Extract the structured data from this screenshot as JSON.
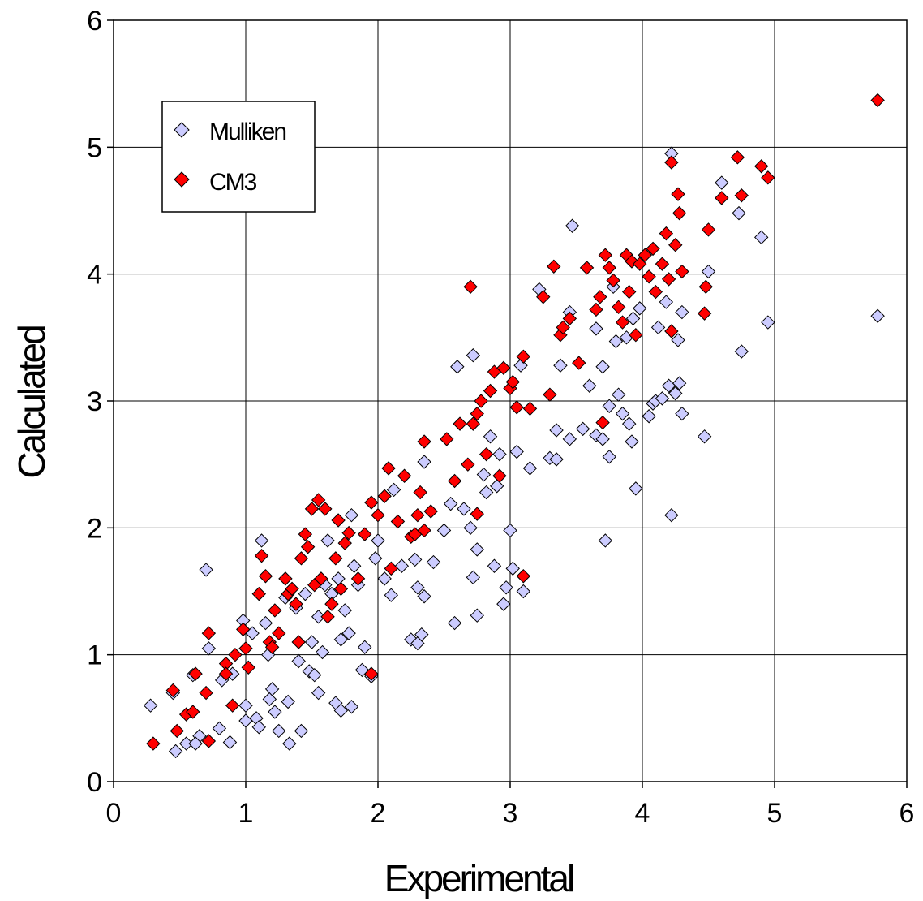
{
  "chart_data": {
    "type": "scatter",
    "title": "",
    "xlabel": "Experimental",
    "ylabel": "Calculated",
    "xlim": [
      0,
      6
    ],
    "ylim": [
      0,
      6
    ],
    "x_ticks": [
      "0",
      "1",
      "2",
      "3",
      "4",
      "5",
      "6"
    ],
    "y_ticks": [
      "0",
      "1",
      "2",
      "3",
      "4",
      "5",
      "6"
    ],
    "grid": true,
    "legend_position": "top-left",
    "series": [
      {
        "name": "Mulliken",
        "color": "#ccccff",
        "marker": "diamond",
        "points": [
          [
            0.28,
            0.6
          ],
          [
            0.45,
            0.7
          ],
          [
            0.47,
            0.24
          ],
          [
            0.55,
            0.3
          ],
          [
            0.6,
            0.84
          ],
          [
            0.65,
            0.36
          ],
          [
            0.7,
            1.67
          ],
          [
            0.72,
            1.05
          ],
          [
            0.8,
            0.42
          ],
          [
            0.82,
            0.8
          ],
          [
            0.88,
            0.31
          ],
          [
            0.9,
            0.85
          ],
          [
            0.98,
            1.27
          ],
          [
            1.0,
            0.48
          ],
          [
            1.0,
            0.6
          ],
          [
            1.05,
            1.17
          ],
          [
            1.08,
            0.5
          ],
          [
            1.1,
            0.43
          ],
          [
            1.12,
            1.9
          ],
          [
            1.15,
            1.25
          ],
          [
            1.17,
            1.0
          ],
          [
            1.18,
            0.65
          ],
          [
            1.2,
            0.73
          ],
          [
            1.22,
            0.55
          ],
          [
            1.25,
            0.4
          ],
          [
            1.3,
            1.45
          ],
          [
            1.32,
            0.63
          ],
          [
            1.33,
            0.3
          ],
          [
            1.38,
            1.37
          ],
          [
            1.4,
            0.95
          ],
          [
            1.42,
            0.4
          ],
          [
            1.45,
            1.48
          ],
          [
            1.48,
            0.87
          ],
          [
            1.5,
            1.1
          ],
          [
            1.52,
            0.84
          ],
          [
            1.55,
            1.3
          ],
          [
            1.55,
            0.7
          ],
          [
            1.58,
            1.02
          ],
          [
            1.6,
            1.55
          ],
          [
            1.62,
            1.9
          ],
          [
            1.65,
            1.48
          ],
          [
            1.68,
            0.62
          ],
          [
            1.7,
            1.6
          ],
          [
            1.72,
            0.56
          ],
          [
            1.75,
            1.35
          ],
          [
            1.78,
            1.17
          ],
          [
            1.8,
            2.1
          ],
          [
            1.8,
            0.59
          ],
          [
            1.82,
            1.7
          ],
          [
            1.85,
            1.55
          ],
          [
            1.88,
            0.88
          ],
          [
            1.9,
            1.06
          ],
          [
            1.95,
            0.83
          ],
          [
            1.98,
            1.76
          ],
          [
            2.0,
            1.9
          ],
          [
            2.05,
            1.6
          ],
          [
            2.1,
            1.47
          ],
          [
            2.12,
            2.3
          ],
          [
            2.18,
            1.7
          ],
          [
            2.25,
            1.12
          ],
          [
            2.28,
            1.75
          ],
          [
            2.3,
            1.53
          ],
          [
            2.3,
            1.09
          ],
          [
            2.33,
            1.16
          ],
          [
            2.35,
            1.46
          ],
          [
            2.35,
            2.52
          ],
          [
            2.42,
            1.73
          ],
          [
            2.5,
            1.98
          ],
          [
            2.55,
            2.19
          ],
          [
            2.58,
            1.25
          ],
          [
            2.6,
            3.27
          ],
          [
            2.65,
            2.15
          ],
          [
            2.7,
            2.0
          ],
          [
            2.72,
            1.61
          ],
          [
            2.72,
            3.36
          ],
          [
            2.75,
            1.31
          ],
          [
            2.75,
            1.83
          ],
          [
            2.8,
            2.42
          ],
          [
            2.82,
            2.28
          ],
          [
            2.85,
            2.72
          ],
          [
            2.88,
            1.7
          ],
          [
            2.9,
            2.33
          ],
          [
            2.92,
            2.58
          ],
          [
            2.95,
            1.4
          ],
          [
            2.97,
            1.53
          ],
          [
            3.0,
            1.98
          ],
          [
            3.02,
            1.68
          ],
          [
            3.05,
            2.6
          ],
          [
            3.08,
            3.28
          ],
          [
            3.1,
            1.5
          ],
          [
            3.15,
            2.47
          ],
          [
            3.22,
            3.88
          ],
          [
            3.3,
            2.55
          ],
          [
            3.35,
            2.77
          ],
          [
            3.35,
            2.54
          ],
          [
            3.38,
            3.28
          ],
          [
            3.45,
            2.7
          ],
          [
            3.45,
            3.7
          ],
          [
            3.47,
            4.38
          ],
          [
            3.55,
            2.78
          ],
          [
            3.6,
            3.12
          ],
          [
            3.65,
            2.73
          ],
          [
            3.65,
            3.57
          ],
          [
            3.7,
            3.27
          ],
          [
            3.7,
            2.7
          ],
          [
            3.72,
            1.9
          ],
          [
            3.75,
            2.56
          ],
          [
            3.75,
            2.96
          ],
          [
            3.78,
            3.9
          ],
          [
            3.8,
            3.47
          ],
          [
            3.82,
            3.05
          ],
          [
            3.85,
            2.9
          ],
          [
            3.88,
            3.5
          ],
          [
            3.9,
            2.82
          ],
          [
            3.92,
            2.68
          ],
          [
            3.93,
            3.65
          ],
          [
            3.95,
            2.31
          ],
          [
            3.98,
            3.73
          ],
          [
            4.05,
            2.88
          ],
          [
            4.08,
            2.98
          ],
          [
            4.1,
            3.0
          ],
          [
            4.12,
            3.58
          ],
          [
            4.15,
            3.02
          ],
          [
            4.18,
            3.78
          ],
          [
            4.2,
            3.12
          ],
          [
            4.22,
            2.1
          ],
          [
            4.22,
            4.95
          ],
          [
            4.25,
            3.06
          ],
          [
            4.27,
            3.48
          ],
          [
            4.28,
            3.14
          ],
          [
            4.3,
            2.9
          ],
          [
            4.3,
            3.7
          ],
          [
            4.47,
            2.72
          ],
          [
            4.5,
            4.02
          ],
          [
            4.6,
            4.72
          ],
          [
            4.73,
            4.48
          ],
          [
            4.75,
            3.39
          ],
          [
            4.9,
            4.29
          ],
          [
            4.95,
            3.62
          ],
          [
            5.78,
            3.67
          ],
          [
            0.62,
            0.3
          ],
          [
            1.72,
            1.12
          ]
        ]
      },
      {
        "name": "CM3",
        "color": "#ff0000",
        "marker": "diamond",
        "points": [
          [
            0.3,
            0.3
          ],
          [
            0.45,
            0.72
          ],
          [
            0.48,
            0.4
          ],
          [
            0.55,
            0.53
          ],
          [
            0.6,
            0.55
          ],
          [
            0.62,
            0.85
          ],
          [
            0.7,
            0.7
          ],
          [
            0.72,
            1.17
          ],
          [
            0.72,
            0.32
          ],
          [
            0.85,
            0.93
          ],
          [
            0.85,
            0.85
          ],
          [
            0.9,
            0.6
          ],
          [
            0.92,
            1.0
          ],
          [
            0.98,
            1.2
          ],
          [
            1.0,
            1.05
          ],
          [
            1.02,
            0.9
          ],
          [
            1.1,
            1.48
          ],
          [
            1.12,
            1.78
          ],
          [
            1.15,
            1.62
          ],
          [
            1.18,
            1.1
          ],
          [
            1.2,
            1.06
          ],
          [
            1.22,
            1.35
          ],
          [
            1.25,
            1.17
          ],
          [
            1.3,
            1.6
          ],
          [
            1.32,
            1.48
          ],
          [
            1.35,
            1.52
          ],
          [
            1.38,
            1.4
          ],
          [
            1.4,
            1.1
          ],
          [
            1.42,
            1.76
          ],
          [
            1.45,
            1.95
          ],
          [
            1.47,
            1.85
          ],
          [
            1.5,
            2.15
          ],
          [
            1.52,
            1.55
          ],
          [
            1.55,
            2.22
          ],
          [
            1.57,
            1.6
          ],
          [
            1.6,
            2.15
          ],
          [
            1.62,
            1.3
          ],
          [
            1.65,
            1.4
          ],
          [
            1.68,
            1.76
          ],
          [
            1.7,
            2.06
          ],
          [
            1.72,
            1.52
          ],
          [
            1.75,
            1.88
          ],
          [
            1.78,
            1.96
          ],
          [
            1.85,
            1.6
          ],
          [
            1.9,
            1.95
          ],
          [
            1.95,
            2.2
          ],
          [
            1.95,
            0.85
          ],
          [
            2.0,
            2.1
          ],
          [
            2.05,
            2.25
          ],
          [
            2.08,
            2.47
          ],
          [
            2.1,
            1.68
          ],
          [
            2.15,
            2.05
          ],
          [
            2.2,
            2.41
          ],
          [
            2.25,
            1.93
          ],
          [
            2.28,
            1.95
          ],
          [
            2.3,
            2.1
          ],
          [
            2.32,
            2.28
          ],
          [
            2.35,
            2.68
          ],
          [
            2.35,
            1.98
          ],
          [
            2.4,
            2.13
          ],
          [
            2.52,
            2.7
          ],
          [
            2.58,
            2.37
          ],
          [
            2.62,
            2.82
          ],
          [
            2.68,
            2.5
          ],
          [
            2.7,
            3.9
          ],
          [
            2.72,
            2.82
          ],
          [
            2.75,
            2.9
          ],
          [
            2.75,
            2.11
          ],
          [
            2.78,
            3.0
          ],
          [
            2.82,
            2.58
          ],
          [
            2.85,
            3.08
          ],
          [
            2.88,
            3.23
          ],
          [
            2.92,
            2.41
          ],
          [
            2.95,
            3.26
          ],
          [
            3.0,
            3.1
          ],
          [
            3.02,
            3.15
          ],
          [
            3.05,
            2.95
          ],
          [
            3.1,
            3.35
          ],
          [
            3.1,
            1.62
          ],
          [
            3.15,
            2.94
          ],
          [
            3.25,
            3.82
          ],
          [
            3.3,
            3.05
          ],
          [
            3.33,
            4.06
          ],
          [
            3.38,
            3.52
          ],
          [
            3.4,
            3.58
          ],
          [
            3.45,
            3.65
          ],
          [
            3.52,
            3.3
          ],
          [
            3.58,
            4.05
          ],
          [
            3.65,
            3.72
          ],
          [
            3.68,
            3.82
          ],
          [
            3.7,
            2.83
          ],
          [
            3.72,
            4.15
          ],
          [
            3.75,
            4.05
          ],
          [
            3.78,
            3.95
          ],
          [
            3.82,
            3.74
          ],
          [
            3.85,
            3.62
          ],
          [
            3.88,
            4.15
          ],
          [
            3.9,
            3.86
          ],
          [
            3.92,
            4.1
          ],
          [
            3.95,
            3.52
          ],
          [
            3.98,
            4.08
          ],
          [
            4.02,
            4.15
          ],
          [
            4.05,
            3.98
          ],
          [
            4.08,
            4.2
          ],
          [
            4.1,
            3.86
          ],
          [
            4.15,
            4.08
          ],
          [
            4.18,
            4.32
          ],
          [
            4.2,
            3.96
          ],
          [
            4.22,
            4.88
          ],
          [
            4.22,
            3.55
          ],
          [
            4.25,
            4.23
          ],
          [
            4.27,
            4.63
          ],
          [
            4.28,
            4.48
          ],
          [
            4.3,
            4.02
          ],
          [
            4.48,
            3.9
          ],
          [
            4.5,
            4.35
          ],
          [
            4.6,
            4.6
          ],
          [
            4.72,
            4.92
          ],
          [
            4.75,
            4.62
          ],
          [
            4.9,
            4.85
          ],
          [
            4.95,
            4.76
          ],
          [
            5.78,
            5.37
          ],
          [
            4.47,
            3.69
          ]
        ]
      }
    ]
  }
}
